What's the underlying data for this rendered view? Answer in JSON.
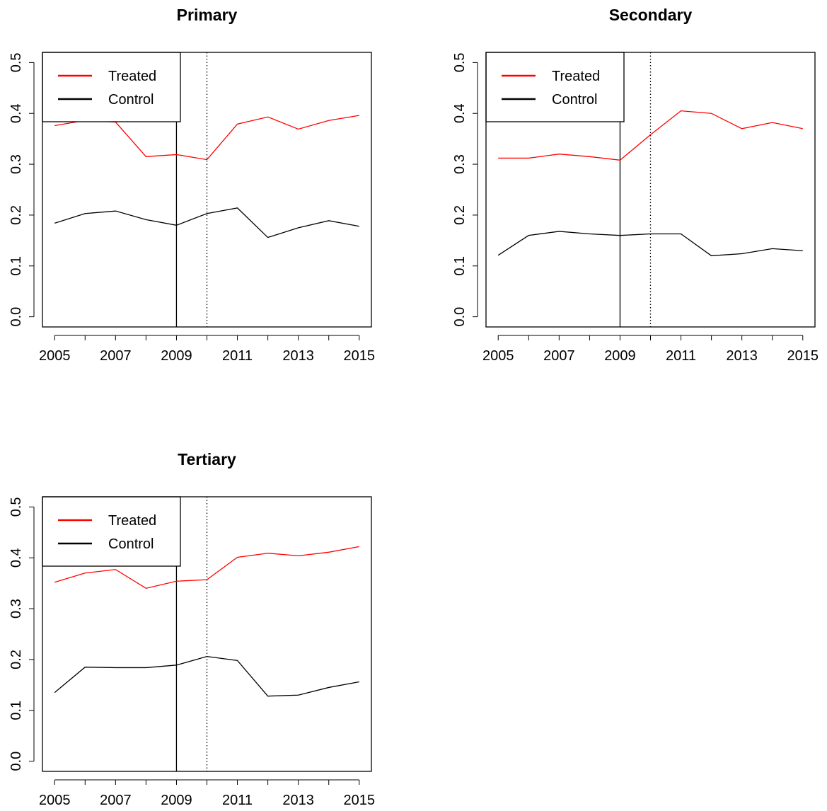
{
  "chart_data": [
    {
      "type": "line",
      "title": "Primary",
      "x": [
        2005,
        2006,
        2007,
        2008,
        2009,
        2010,
        2011,
        2012,
        2013,
        2014,
        2015
      ],
      "series": [
        {
          "name": "Treated",
          "color": "#ff0000",
          "values": [
            0.376,
            0.386,
            0.383,
            0.315,
            0.319,
            0.309,
            0.379,
            0.393,
            0.369,
            0.386,
            0.396
          ]
        },
        {
          "name": "Control",
          "color": "#000000",
          "values": [
            0.184,
            0.203,
            0.208,
            0.191,
            0.18,
            0.203,
            0.214,
            0.156,
            0.175,
            0.189,
            0.178
          ]
        }
      ],
      "xlim": [
        2004.6,
        2015.4
      ],
      "xticks": [
        2005,
        2007,
        2009,
        2011,
        2013,
        2015
      ],
      "xminor_ticks": [
        2006,
        2008,
        2010,
        2012,
        2014
      ],
      "ylim": [
        -0.02,
        0.52
      ],
      "yticks": [
        {
          "value": 0,
          "label": "0.0"
        },
        0.1,
        0.2,
        0.3,
        0.4,
        0.5
      ],
      "vlines": [
        {
          "x": 2009,
          "style": "solid"
        },
        {
          "x": 2010,
          "style": "dotted"
        }
      ],
      "legend": "topleft"
    },
    {
      "type": "line",
      "title": "Secondary",
      "x": [
        2005,
        2006,
        2007,
        2008,
        2009,
        2010,
        2011,
        2012,
        2013,
        2014,
        2015
      ],
      "series": [
        {
          "name": "Treated",
          "color": "#ff0000",
          "values": [
            0.312,
            0.312,
            0.32,
            0.315,
            0.308,
            0.358,
            0.405,
            0.4,
            0.37,
            0.382,
            0.37
          ]
        },
        {
          "name": "Control",
          "color": "#000000",
          "values": [
            0.121,
            0.16,
            0.168,
            0.163,
            0.16,
            0.163,
            0.163,
            0.12,
            0.124,
            0.134,
            0.13
          ]
        }
      ],
      "xlim": [
        2004.6,
        2015.4
      ],
      "xticks": [
        2005,
        2007,
        2009,
        2011,
        2013,
        2015
      ],
      "xminor_ticks": [
        2006,
        2008,
        2010,
        2012,
        2014
      ],
      "ylim": [
        -0.02,
        0.52
      ],
      "yticks": [
        {
          "value": 0,
          "label": "0.0"
        },
        0.1,
        0.2,
        0.3,
        0.4,
        0.5
      ],
      "vlines": [
        {
          "x": 2009,
          "style": "solid"
        },
        {
          "x": 2010,
          "style": "dotted"
        }
      ],
      "legend": "topleft"
    },
    {
      "type": "line",
      "title": "Tertiary",
      "x": [
        2005,
        2006,
        2007,
        2008,
        2009,
        2010,
        2011,
        2012,
        2013,
        2014,
        2015
      ],
      "series": [
        {
          "name": "Treated",
          "color": "#ff0000",
          "values": [
            0.352,
            0.37,
            0.377,
            0.34,
            0.354,
            0.357,
            0.401,
            0.409,
            0.404,
            0.411,
            0.422
          ]
        },
        {
          "name": "Control",
          "color": "#000000",
          "values": [
            0.135,
            0.185,
            0.184,
            0.184,
            0.189,
            0.206,
            0.198,
            0.128,
            0.13,
            0.145,
            0.156
          ]
        }
      ],
      "xlim": [
        2004.6,
        2015.4
      ],
      "xticks": [
        2005,
        2007,
        2009,
        2011,
        2013,
        2015
      ],
      "xminor_ticks": [
        2006,
        2008,
        2010,
        2012,
        2014
      ],
      "ylim": [
        -0.02,
        0.52
      ],
      "yticks": [
        {
          "value": 0,
          "label": "0.0"
        },
        0.1,
        0.2,
        0.3,
        0.4,
        0.5
      ],
      "vlines": [
        {
          "x": 2009,
          "style": "solid"
        },
        {
          "x": 2010,
          "style": "dotted"
        }
      ],
      "legend": "topleft"
    }
  ]
}
